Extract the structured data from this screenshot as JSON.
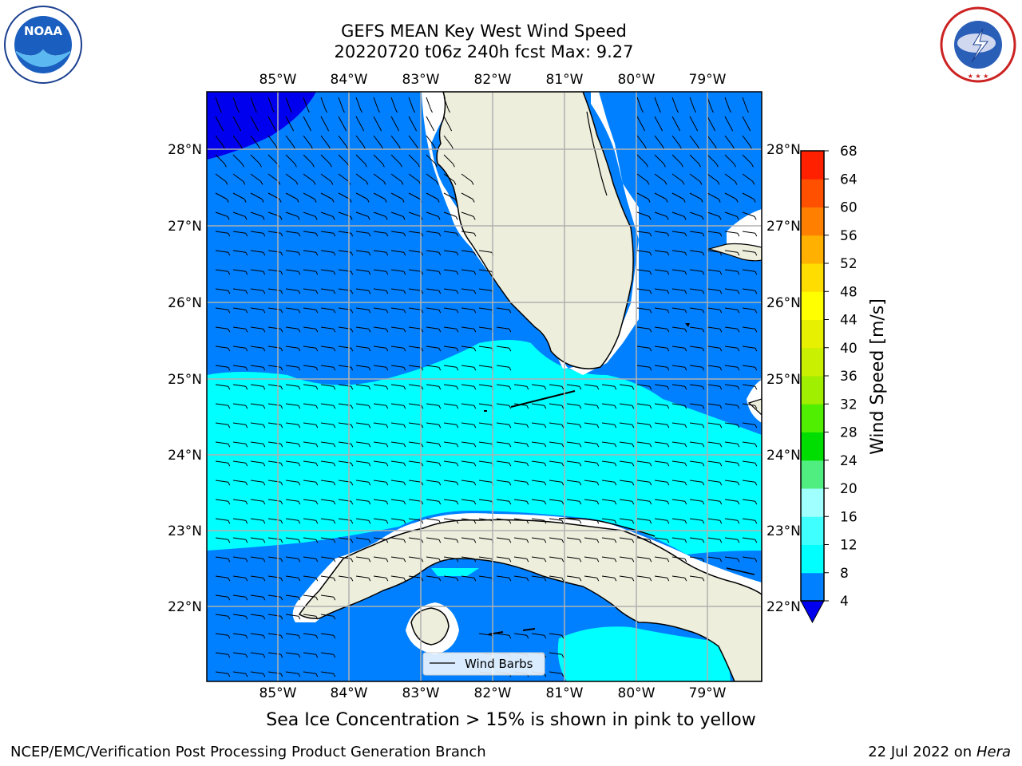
{
  "header": {
    "line1": "GEFS MEAN Key West Wind Speed",
    "line2": "20220720 t06z 240h fcst   Max: 9.27"
  },
  "logos": {
    "left": "noaa-logo",
    "right": "nws-logo",
    "left_text": "NOAA",
    "left_ring_text": "NATIONAL OCEANIC AND ATMOSPHERIC ADMINISTRATION · U.S. DEPARTMENT OF COMMERCE",
    "right_ring_text": "NATIONAL WEATHER SERVICE"
  },
  "map": {
    "lon_labels": [
      "85°W",
      "84°W",
      "83°W",
      "82°W",
      "81°W",
      "80°W",
      "79°W"
    ],
    "lat_labels": [
      "28°N",
      "27°N",
      "26°N",
      "25°N",
      "24°N",
      "23°N",
      "22°N"
    ],
    "legend_label": "Wind Barbs",
    "colors": {
      "ocean_low": "#0000ee",
      "ocean_mid": "#0080ff",
      "ocean_high": "#00ffff",
      "land": "#eeeedd",
      "grid": "#b0b0b0"
    }
  },
  "colorbar": {
    "label": "Wind Speed [m/s]",
    "ticks": [
      "4",
      "8",
      "12",
      "16",
      "20",
      "24",
      "28",
      "32",
      "36",
      "40",
      "44",
      "48",
      "52",
      "56",
      "60",
      "64",
      "68"
    ],
    "colors": [
      "#0080ff",
      "#00ffff",
      "#40ffff",
      "#a0ffff",
      "#50ee80",
      "#00dd00",
      "#50ee00",
      "#a0ee00",
      "#c8f000",
      "#e6f000",
      "#ffff00",
      "#ffdd00",
      "#ffb000",
      "#ff8000",
      "#ff5000",
      "#ff2000"
    ]
  },
  "caption": "Sea Ice Concentration > 15% is shown in pink to yellow",
  "footer": {
    "left": "NCEP/EMC/Verification Post Processing Product Generation Branch",
    "right_prefix": "22 Jul 2022 on ",
    "right_host": "Hera"
  }
}
